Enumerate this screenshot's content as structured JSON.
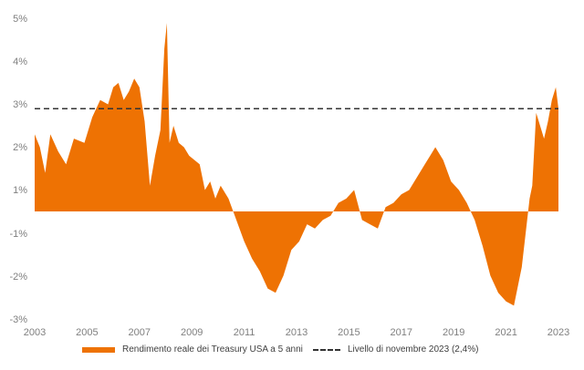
{
  "chart_data": {
    "type": "area",
    "x_ticks": [
      "2003",
      "2005",
      "2007",
      "2009",
      "2011",
      "2013",
      "2015",
      "2017",
      "2019",
      "2021",
      "2023"
    ],
    "y_ticks": [
      "5%",
      "4%",
      "3%",
      "2%",
      "1%",
      "-1%",
      "-2%",
      "-3%"
    ],
    "xlim": [
      2003,
      2023
    ],
    "grid": false,
    "legend_position": "bottom",
    "series": [
      {
        "name": "Rendimento  reale dei Treasury USA a 5 anni",
        "color": "#ee7203",
        "x": [
          2003.0,
          2003.2,
          2003.4,
          2003.6,
          2003.9,
          2004.2,
          2004.5,
          2004.9,
          2005.2,
          2005.5,
          2005.8,
          2006.0,
          2006.2,
          2006.4,
          2006.6,
          2006.8,
          2007.0,
          2007.2,
          2007.4,
          2007.6,
          2007.8,
          2007.95,
          2008.05,
          2008.15,
          2008.3,
          2008.5,
          2008.7,
          2008.9,
          2009.1,
          2009.3,
          2009.5,
          2009.7,
          2009.9,
          2010.1,
          2010.4,
          2010.7,
          2011.0,
          2011.3,
          2011.6,
          2011.9,
          2012.2,
          2012.5,
          2012.8,
          2013.1,
          2013.4,
          2013.7,
          2014.0,
          2014.3,
          2014.6,
          2014.9,
          2015.2,
          2015.5,
          2015.8,
          2016.1,
          2016.4,
          2016.7,
          2017.0,
          2017.3,
          2017.6,
          2017.9,
          2018.1,
          2018.3,
          2018.6,
          2018.9,
          2019.2,
          2019.5,
          2019.8,
          2020.1,
          2020.4,
          2020.7,
          2021.0,
          2021.3,
          2021.6,
          2021.9,
          2022.0,
          2022.15,
          2022.3,
          2022.45,
          2022.6,
          2022.75,
          2022.9,
          2023.0
        ],
        "y": [
          1.8,
          1.5,
          0.9,
          1.8,
          1.4,
          1.1,
          1.7,
          1.6,
          2.2,
          2.6,
          2.5,
          2.9,
          3.0,
          2.6,
          2.8,
          3.1,
          2.9,
          2.1,
          0.6,
          1.3,
          1.9,
          3.8,
          4.4,
          1.6,
          2.0,
          1.6,
          1.5,
          1.3,
          1.2,
          1.1,
          0.5,
          0.7,
          0.3,
          0.6,
          0.3,
          -0.2,
          -0.7,
          -1.1,
          -1.4,
          -1.8,
          -1.9,
          -1.5,
          -0.9,
          -0.7,
          -0.3,
          -0.4,
          -0.2,
          -0.1,
          0.2,
          0.3,
          0.5,
          -0.2,
          -0.3,
          -0.4,
          0.1,
          0.2,
          0.4,
          0.5,
          0.8,
          1.1,
          1.3,
          1.5,
          1.2,
          0.7,
          0.5,
          0.2,
          -0.2,
          -0.8,
          -1.5,
          -1.9,
          -2.1,
          -2.2,
          -1.3,
          0.3,
          0.6,
          2.3,
          2.0,
          1.7,
          2.1,
          2.6,
          2.9,
          2.4
        ]
      },
      {
        "name": "Livello di novembre 2023 (2,4%)",
        "color": "#333333",
        "style": "dashed",
        "value": 2.4
      }
    ]
  }
}
